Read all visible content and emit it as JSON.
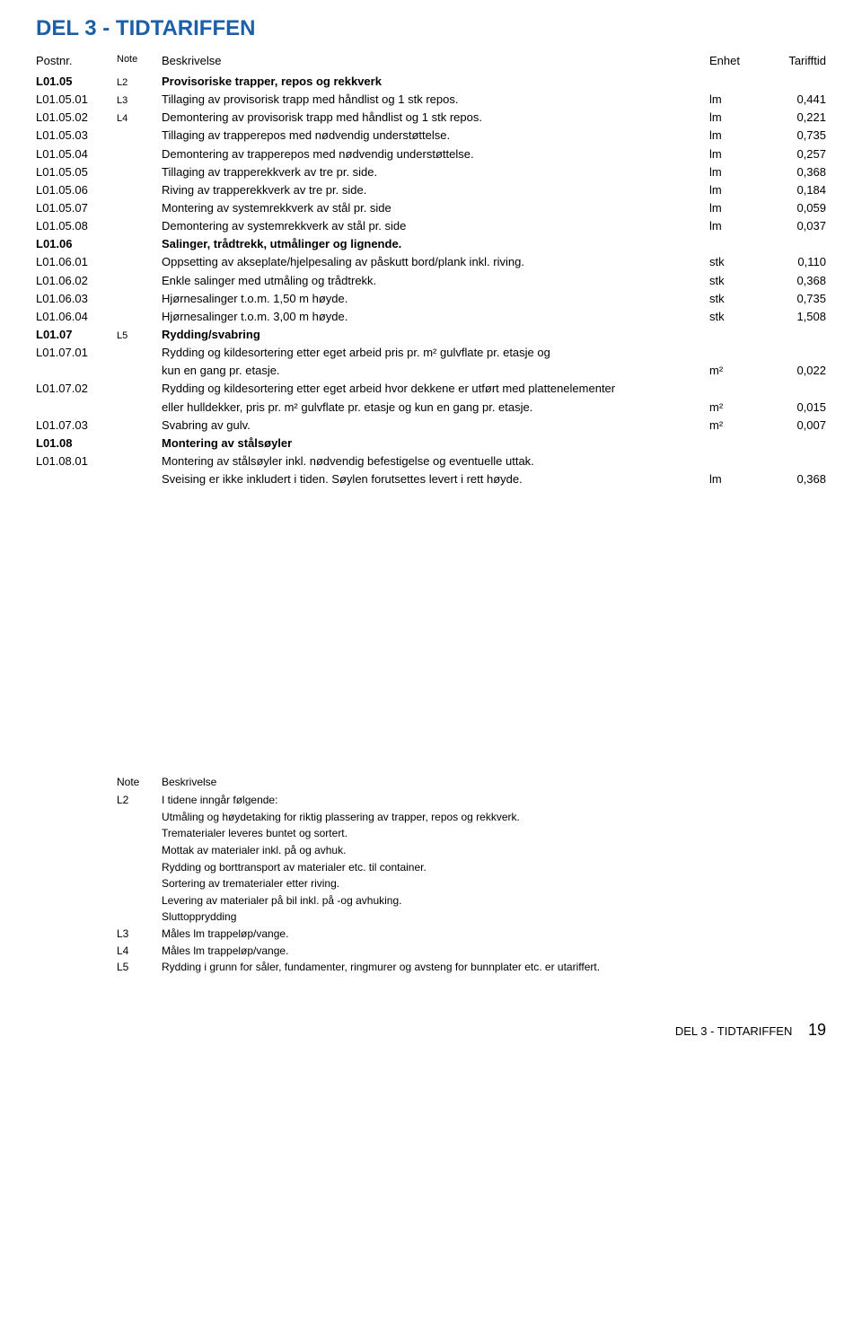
{
  "title": "DEL 3 - TIDTARIFFEN",
  "header": {
    "postnr": "Postnr.",
    "note": "Note",
    "desc": "Beskrivelse",
    "unit": "Enhet",
    "val": "Tarifftid"
  },
  "rows": [
    {
      "postnr": "L01.05",
      "note": "L2",
      "desc": "Provisoriske trapper, repos og rekkverk",
      "unit": "",
      "val": "",
      "section": true
    },
    {
      "postnr": "L01.05.01",
      "note": "L3",
      "desc": "Tillaging av provisorisk trapp med håndlist og 1 stk repos.",
      "unit": "lm",
      "val": "0,441"
    },
    {
      "postnr": "L01.05.02",
      "note": "L4",
      "desc": "Demontering av provisorisk trapp med håndlist og 1 stk repos.",
      "unit": "lm",
      "val": "0,221"
    },
    {
      "postnr": "L01.05.03",
      "note": "",
      "desc": "Tillaging av trapperepos med nødvendig understøttelse.",
      "unit": "lm",
      "val": "0,735"
    },
    {
      "postnr": "L01.05.04",
      "note": "",
      "desc": "Demontering av trapperepos med nødvendig understøttelse.",
      "unit": "lm",
      "val": "0,257"
    },
    {
      "postnr": "L01.05.05",
      "note": "",
      "desc": "Tillaging av trapperekkverk av tre pr. side.",
      "unit": "lm",
      "val": "0,368"
    },
    {
      "postnr": "L01.05.06",
      "note": "",
      "desc": "Riving av trapperekkverk av tre pr. side.",
      "unit": "lm",
      "val": "0,184"
    },
    {
      "postnr": "L01.05.07",
      "note": "",
      "desc": "Montering av systemrekkverk av stål pr. side",
      "unit": "lm",
      "val": "0,059"
    },
    {
      "postnr": "L01.05.08",
      "note": "",
      "desc": "Demontering av systemrekkverk av stål pr. side",
      "unit": "lm",
      "val": "0,037"
    },
    {
      "postnr": "L01.06",
      "note": "",
      "desc": "Salinger, trådtrekk, utmålinger og lignende.",
      "unit": "",
      "val": "",
      "section": true
    },
    {
      "postnr": "L01.06.01",
      "note": "",
      "desc": "Oppsetting av akseplate/hjelpesaling av påskutt bord/plank inkl. riving.",
      "unit": "stk",
      "val": "0,110"
    },
    {
      "postnr": "L01.06.02",
      "note": "",
      "desc": "Enkle salinger med utmåling og trådtrekk.",
      "unit": "stk",
      "val": "0,368"
    },
    {
      "postnr": "L01.06.03",
      "note": "",
      "desc": "Hjørnesalinger t.o.m. 1,50 m høyde.",
      "unit": "stk",
      "val": "0,735"
    },
    {
      "postnr": "L01.06.04",
      "note": "",
      "desc": "Hjørnesalinger t.o.m. 3,00 m høyde.",
      "unit": "stk",
      "val": "1,508"
    },
    {
      "postnr": "L01.07",
      "note": "L5",
      "desc": "Rydding/svabring",
      "unit": "",
      "val": "",
      "section": true
    },
    {
      "postnr": "L01.07.01",
      "note": "",
      "desc": "Rydding og kildesortering etter eget arbeid pris pr. m² gulvflate pr. etasje og",
      "unit": "",
      "val": ""
    },
    {
      "postnr": "",
      "note": "",
      "desc": "kun en gang pr. etasje.",
      "unit": "m²",
      "val": "0,022",
      "cont": true
    },
    {
      "postnr": "L01.07.02",
      "note": "",
      "desc": "Rydding og kildesortering etter eget arbeid hvor dekkene er utført med plattenelementer",
      "unit": "",
      "val": ""
    },
    {
      "postnr": "",
      "note": "",
      "desc": "eller hulldekker, pris pr. m² gulvflate pr. etasje og kun en gang pr. etasje.",
      "unit": "m²",
      "val": "0,015",
      "cont": true
    },
    {
      "postnr": "L01.07.03",
      "note": "",
      "desc": "Svabring av gulv.",
      "unit": "m²",
      "val": "0,007"
    },
    {
      "postnr": "L01.08",
      "note": "",
      "desc": "Montering av stålsøyler",
      "unit": "",
      "val": "",
      "section": true
    },
    {
      "postnr": "L01.08.01",
      "note": "",
      "desc": "Montering av stålsøyler inkl. nødvendig befestigelse og eventuelle uttak.",
      "unit": "",
      "val": ""
    },
    {
      "postnr": "",
      "note": "",
      "desc": "Sveising er ikke inkludert i tiden. Søylen forutsettes levert i rett høyde.",
      "unit": "lm",
      "val": "0,368",
      "cont": true
    }
  ],
  "notesHeader": {
    "note": "Note",
    "desc": "Beskrivelse"
  },
  "notes": [
    {
      "note": "L2",
      "desc": "I tidene inngår følgende:"
    },
    {
      "note": "",
      "desc": "Utmåling og høydetaking for riktig plassering av trapper, repos og rekkverk."
    },
    {
      "note": "",
      "desc": "Trematerialer leveres buntet og sortert."
    },
    {
      "note": "",
      "desc": "Mottak av materialer inkl. på og avhuk."
    },
    {
      "note": "",
      "desc": "Rydding og borttransport av materialer etc. til container."
    },
    {
      "note": "",
      "desc": "Sortering av trematerialer etter riving."
    },
    {
      "note": "",
      "desc": "Levering av materialer på bil inkl. på  -og avhuking."
    },
    {
      "note": "",
      "desc": "Sluttopprydding"
    },
    {
      "note": "L3",
      "desc": "Måles lm trappeløp/vange."
    },
    {
      "note": "L4",
      "desc": "Måles lm trappeløp/vange."
    },
    {
      "note": "L5",
      "desc": "Rydding i grunn for såler, fundamenter, ringmurer og avsteng for bunnplater etc. er utariffert."
    }
  ],
  "footer": {
    "label": "DEL 3 - TIDTARIFFEN",
    "page": "19"
  }
}
